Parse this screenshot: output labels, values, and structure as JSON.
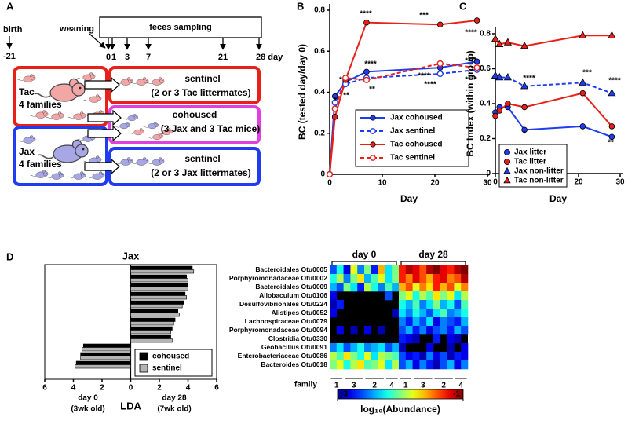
{
  "diagram": {
    "panel": "A",
    "birth": "birth",
    "birth_day": "-21",
    "weaning": "weaning",
    "sampling": "feces sampling",
    "days": [
      "0",
      "1",
      "3",
      "7",
      "21",
      "28 day"
    ],
    "groups": [
      {
        "name": "Tac",
        "count": "4 families"
      },
      {
        "name": "Jax",
        "count": "4 families"
      }
    ],
    "outcomes": [
      {
        "title": "sentinel",
        "note": "(2 or 3 Tac littermates)"
      },
      {
        "title": "cohoused",
        "note": "(3 Jax and 3 Tac mice)"
      },
      {
        "title": "sentinel",
        "note": "(2 or 3 Jax littermates)"
      }
    ]
  },
  "chart_data": [
    {
      "type": "line",
      "panel": "B",
      "ylabel": "BC (tested day/day   0)",
      "xlabel": "Day",
      "x": [
        0,
        1,
        3,
        7,
        21,
        28
      ],
      "xlim": [
        0,
        30
      ],
      "xticks": [
        0,
        10,
        20,
        30
      ],
      "ylim": [
        0,
        0.8
      ],
      "yticks": [
        0,
        0.2,
        0.4,
        0.6,
        0.8
      ],
      "legend": "lower right",
      "legend_style": "line",
      "series": [
        {
          "name": "Jax cohoused",
          "color": "#1f3cf0",
          "dash": false,
          "marker": "circle",
          "fill": "filled",
          "values": [
            0,
            0.38,
            0.45,
            0.5,
            0.52,
            0.55
          ]
        },
        {
          "name": "Jax sentinel",
          "color": "#1f3cf0",
          "dash": true,
          "marker": "circle",
          "fill": "open",
          "values": [
            0,
            0.35,
            0.44,
            0.47,
            0.49,
            0.51
          ]
        },
        {
          "name": "Tac cohoused",
          "color": "#e8201a",
          "dash": false,
          "marker": "circle",
          "fill": "filled",
          "values": [
            0,
            0.28,
            0.46,
            0.74,
            0.73,
            0.75
          ]
        },
        {
          "name": "Tac sentinel",
          "color": "#e8201a",
          "dash": true,
          "marker": "circle",
          "fill": "open",
          "values": [
            0,
            0.32,
            0.47,
            0.46,
            0.54,
            0.52
          ]
        }
      ],
      "annotations": [
        "*",
        "*",
        "**",
        "****",
        "***",
        "****",
        "****",
        "**",
        "****",
        "****",
        "****",
        "****"
      ]
    },
    {
      "type": "line",
      "panel": "C",
      "ylabel": "BC Index (within group)",
      "xlabel": "Day",
      "x": [
        0,
        1,
        3,
        7,
        21,
        28
      ],
      "xlim": [
        0,
        30
      ],
      "xticks": [
        0,
        10,
        20,
        30
      ],
      "ylim": [
        0,
        0.8
      ],
      "yticks": [
        0,
        0.2,
        0.4,
        0.6,
        0.8
      ],
      "legend": "lower left",
      "legend_style": "marker",
      "series": [
        {
          "name": "Jax litter",
          "color": "#1f3cf0",
          "dash": false,
          "marker": "circle",
          "fill": "filled",
          "values": [
            0.35,
            0.38,
            0.38,
            0.25,
            0.27,
            0.21
          ]
        },
        {
          "name": "Tac litter",
          "color": "#e8201a",
          "dash": false,
          "marker": "circle",
          "fill": "filled",
          "values": [
            0.33,
            0.36,
            0.4,
            0.38,
            0.46,
            0.27
          ]
        },
        {
          "name": "Jax non-litter",
          "color": "#1f3cf0",
          "dash": true,
          "marker": "triangle",
          "fill": "filled",
          "values": [
            0.56,
            0.55,
            0.55,
            0.5,
            0.52,
            0.46
          ]
        },
        {
          "name": "Tac non-litter",
          "color": "#e8201a",
          "dash": false,
          "marker": "triangle",
          "fill": "filled",
          "values": [
            0.77,
            0.74,
            0.75,
            0.73,
            0.79,
            0.79
          ]
        }
      ],
      "annotations": [
        "****",
        "*",
        "***",
        "****",
        "**"
      ]
    },
    {
      "type": "bar",
      "orientation": "horizontal",
      "panel": "D",
      "title": "Jax",
      "xlabel": "LDA",
      "xlim": [
        -6,
        6
      ],
      "xticks": [
        {
          "value": -6,
          "label": "6"
        },
        {
          "value": -4,
          "label": "4"
        },
        {
          "value": -2,
          "label": "2"
        },
        0,
        2,
        4,
        6
      ],
      "annotations": [
        "day 0",
        "(3wk old)",
        "day 28",
        "(7wk old)"
      ],
      "legend": "lower right",
      "series": [
        {
          "name": "cohoused",
          "color": "#000000",
          "values": [
            4.3,
            3.9,
            4.0,
            3.8,
            3.7,
            3.3,
            3.1,
            2.9,
            2.8,
            -3.3,
            -3.5,
            -3.8
          ]
        },
        {
          "name": "sentinel",
          "color": "#b4b4b4",
          "values": [
            4.4,
            4.0,
            4.0,
            3.9,
            3.6,
            3.4,
            3.0,
            2.8,
            2.9,
            -3.4,
            -3.5,
            -3.9
          ]
        }
      ]
    },
    {
      "type": "heatmap",
      "colormap": "jet",
      "rows": [
        "Bacteroidales Otu0005",
        "Porphyromonadaceae Otu0002",
        "Bacteroidales Otu0009",
        "Allobaculum Otu0106",
        "Desulfovibrionales Otu0224",
        "Alistipes Otu0052",
        "Lachnospiraceae Otu0079",
        "Porphyromonadaceae Otu0094",
        "Clostridia Otu0330",
        "Geobacillus Otu0091",
        "Enterobacteriaceae Otu0086",
        "Bacteroides Otu0018"
      ],
      "groups": [
        "day 0",
        "day 28"
      ],
      "family_label": "family",
      "families": [
        "1",
        "3",
        "2",
        "4",
        "1",
        "3",
        "2",
        "4"
      ],
      "zlim": [
        -3,
        -1
      ],
      "zticks": [
        -3,
        -1
      ],
      "zlabel": "log₁₀(Abundance)",
      "values": [
        [
          -2.6,
          -2.2,
          -2.8,
          -1.8,
          -2.5,
          -2.0,
          -2.7,
          -1.6,
          -2.3,
          -2.0,
          -1.3,
          -1.1,
          -1.2,
          -1.4,
          -1.1,
          -1.0,
          -1.2,
          -1.3,
          -1.1,
          -1.0
        ],
        [
          -2.2,
          -1.9,
          -2.5,
          -2.0,
          -1.7,
          -2.4,
          -2.1,
          -1.8,
          -2.3,
          -2.0,
          -1.3,
          -1.5,
          -1.2,
          -1.4,
          -1.6,
          -1.3,
          -1.2,
          -1.5,
          -1.4,
          -1.1
        ],
        [
          -2.4,
          -2.6,
          -2.0,
          -2.3,
          -2.7,
          -1.9,
          -2.2,
          -2.5,
          -2.1,
          -2.4,
          -1.6,
          -1.4,
          -1.8,
          -1.5,
          -1.7,
          -1.3,
          -1.6,
          -1.4,
          -1.8,
          -1.5
        ],
        [
          -2.8,
          null,
          null,
          null,
          null,
          null,
          null,
          null,
          -2.6,
          null,
          -2.0,
          -1.8,
          -2.2,
          -1.9,
          -2.1,
          -1.7,
          -2.0,
          -1.8,
          -2.3,
          -1.9
        ],
        [
          -2.9,
          -2.7,
          null,
          null,
          null,
          null,
          null,
          null,
          null,
          null,
          -2.2,
          -2.4,
          -2.1,
          -2.5,
          -2.3,
          -2.0,
          -2.4,
          -2.2,
          -2.6,
          -2.1
        ],
        [
          -2.8,
          null,
          null,
          null,
          null,
          null,
          null,
          null,
          null,
          -2.9,
          -2.3,
          -2.5,
          -2.2,
          -2.4,
          -2.6,
          -2.3,
          -2.1,
          -2.5,
          -2.4,
          -2.2
        ],
        [
          null,
          null,
          null,
          null,
          null,
          null,
          null,
          null,
          null,
          null,
          -2.5,
          -2.7,
          -2.4,
          -2.6,
          -2.3,
          -2.8,
          -2.5,
          -2.6,
          -2.7,
          -2.4
        ],
        [
          null,
          -2.8,
          null,
          -2.9,
          null,
          -2.8,
          null,
          -2.9,
          null,
          null,
          -2.6,
          -2.4,
          -2.7,
          -2.5,
          -2.8,
          -2.6,
          -2.5,
          -2.7,
          -2.4,
          -2.6
        ],
        [
          null,
          null,
          null,
          null,
          null,
          null,
          null,
          null,
          null,
          null,
          -2.7,
          -2.8,
          -2.9,
          null,
          null,
          -2.7,
          null,
          -2.8,
          -2.9,
          null
        ],
        [
          -2.5,
          -2.3,
          -2.6,
          -2.4,
          -2.2,
          -2.5,
          -2.4,
          -2.3,
          -2.6,
          -2.4,
          -2.9,
          null,
          null,
          null,
          -2.8,
          null,
          null,
          -2.9,
          null,
          -2.8
        ],
        [
          -1.9,
          -2.1,
          -1.7,
          -2.0,
          -2.2,
          -1.8,
          -2.3,
          -1.9,
          -2.0,
          -2.1,
          -2.6,
          -2.8,
          -2.7,
          -2.9,
          -2.5,
          -2.8,
          -2.6,
          -2.9,
          -2.7,
          -2.8
        ],
        [
          -2.0,
          -1.8,
          -2.2,
          -1.9,
          -1.7,
          -2.1,
          -2.0,
          -1.8,
          -2.3,
          -1.9,
          -2.6,
          -2.4,
          -2.8,
          -2.5,
          -2.7,
          -2.9,
          -2.6,
          -2.4,
          -2.8,
          -2.5
        ]
      ]
    }
  ]
}
